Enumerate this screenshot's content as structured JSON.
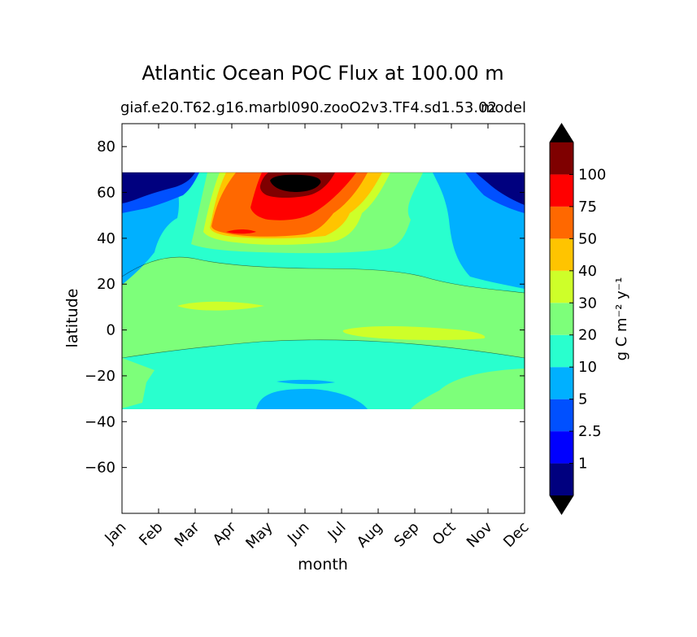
{
  "chart_data": {
    "type": "heatmap",
    "title": "Atlantic Ocean POC Flux at 100.00 m",
    "subtitle_left": "giaf.e20.T62.g16.marbl090.zooO2v3.TF4.sd1.53.02",
    "subtitle_right": "model",
    "xlabel": "month",
    "ylabel": "latitude",
    "colorbar_label": "g C m⁻² y⁻¹",
    "x_categories": [
      "Jan",
      "Feb",
      "Mar",
      "Apr",
      "May",
      "Jun",
      "Jul",
      "Aug",
      "Sep",
      "Oct",
      "Nov",
      "Dec"
    ],
    "y_ticks": [
      80,
      60,
      40,
      20,
      0,
      -20,
      -40,
      -60
    ],
    "ylim": [
      -80,
      90
    ],
    "data_lat_range": [
      -34,
      69
    ],
    "levels": [
      1,
      2.5,
      5,
      10,
      20,
      30,
      40,
      50,
      75,
      100
    ],
    "colorbar_tick_labels": [
      "1",
      "2.5",
      "5",
      "10",
      "20",
      "30",
      "40",
      "50",
      "75",
      "100"
    ],
    "extend": "both",
    "colors": [
      "#00007f",
      "#0000ff",
      "#0050ff",
      "#00b0ff",
      "#29ffce",
      "#7dff7a",
      "#ceff29",
      "#ffc400",
      "#ff6800",
      "#ff0000",
      "#7f0000"
    ],
    "under_color": "#000000",
    "over_color": "#000000",
    "grid": false,
    "legend_position": "right"
  }
}
